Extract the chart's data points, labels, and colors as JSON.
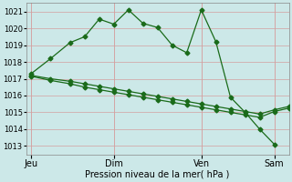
{
  "xlabel": "Pression niveau de la mer( hPa )",
  "background_color": "#cce8e8",
  "grid_color": "#d4a0a0",
  "line_color": "#1a6b1a",
  "ylim": [
    1012.5,
    1021.5
  ],
  "yticks": [
    1013,
    1014,
    1015,
    1016,
    1017,
    1018,
    1019,
    1020,
    1021
  ],
  "xlim": [
    0,
    108
  ],
  "xtick_positions": [
    2,
    36,
    72,
    102
  ],
  "xtick_labels": [
    "Jeu",
    "Dim",
    "Ven",
    "Sam"
  ],
  "line1_x": [
    2,
    10,
    18,
    24,
    30,
    36,
    42,
    48,
    54,
    60,
    66,
    72,
    78,
    84,
    90,
    96,
    102
  ],
  "line1_y": [
    1017.3,
    1018.2,
    1019.15,
    1019.5,
    1020.55,
    1020.25,
    1021.1,
    1020.3,
    1020.05,
    1019.0,
    1018.55,
    1021.1,
    1019.2,
    1015.9,
    1015.0,
    1014.0,
    1013.1
  ],
  "line2_x": [
    2,
    10,
    18,
    24,
    30,
    36,
    42,
    48,
    54,
    60,
    66,
    72,
    78,
    84,
    90,
    96,
    102,
    108
  ],
  "line2_y": [
    1017.2,
    1017.0,
    1016.85,
    1016.7,
    1016.55,
    1016.4,
    1016.25,
    1016.1,
    1015.95,
    1015.8,
    1015.65,
    1015.5,
    1015.35,
    1015.2,
    1015.05,
    1014.9,
    1015.15,
    1015.35
  ],
  "line3_x": [
    2,
    10,
    18,
    24,
    30,
    36,
    42,
    48,
    54,
    60,
    66,
    72,
    78,
    84,
    90,
    96,
    102,
    108
  ],
  "line3_y": [
    1017.15,
    1016.9,
    1016.7,
    1016.5,
    1016.35,
    1016.2,
    1016.05,
    1015.9,
    1015.75,
    1015.6,
    1015.45,
    1015.3,
    1015.15,
    1015.0,
    1014.85,
    1014.7,
    1015.05,
    1015.25
  ],
  "fig_width": 3.2,
  "fig_height": 2.0,
  "dpi": 100
}
